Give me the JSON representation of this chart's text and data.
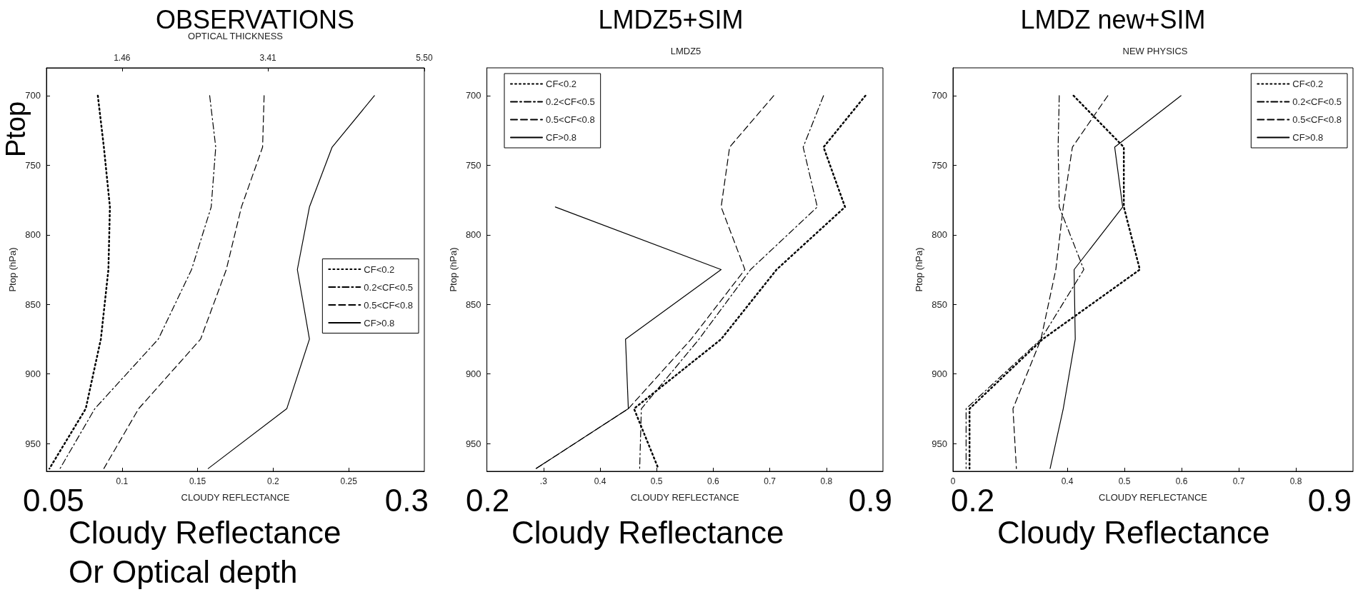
{
  "chart_data": [
    {
      "type": "line",
      "title": "OBSERVATIONS",
      "xlabel": "CLOUDY REFLECTANCE",
      "ylabel": "Ptop (hPa)",
      "x2label": "OPTICAL THICKNESS",
      "xlim": [
        0.05,
        0.3
      ],
      "xticks": [
        0.1,
        0.15,
        0.2,
        0.25
      ],
      "x2lim": [
        0.45,
        5.5
      ],
      "x2ticks": [
        1.46,
        3.41,
        {
          "value": 5.5,
          "label": "5.50"
        }
      ],
      "ylim": [
        970,
        680
      ],
      "yticks": [
        700,
        750,
        800,
        850,
        900,
        950
      ],
      "legend": "right",
      "annotations": [
        "Ptop",
        "0.05",
        "0.3",
        "Cloudy Reflectance",
        "Or Optical depth"
      ],
      "series": [
        {
          "name": "CF<0.2",
          "color": "#000000",
          "line_style": "dotted",
          "x": [
            0.084,
            0.088,
            0.092,
            0.091,
            0.086,
            0.076,
            0.052
          ],
          "values": [
            700,
            737,
            780,
            825,
            875,
            925,
            968
          ]
        },
        {
          "name": "0.2<CF<0.5",
          "color": "#000000",
          "line_style": "dashdot",
          "x": [
            0.158,
            0.162,
            0.159,
            0.146,
            0.124,
            0.082,
            0.059
          ],
          "values": [
            700,
            737,
            780,
            825,
            875,
            925,
            968
          ]
        },
        {
          "name": "0.5<CF<0.8",
          "color": "#000000",
          "line_style": "dashed",
          "x": [
            0.194,
            0.193,
            0.179,
            0.169,
            0.152,
            0.111,
            0.088
          ],
          "values": [
            700,
            737,
            780,
            825,
            875,
            925,
            968
          ]
        },
        {
          "name": "CF>0.8",
          "color": "#000000",
          "line_style": "solid",
          "x": [
            0.267,
            0.239,
            0.224,
            0.216,
            0.224,
            0.209,
            0.157
          ],
          "values": [
            700,
            737,
            780,
            825,
            875,
            925,
            968
          ]
        }
      ]
    },
    {
      "type": "line",
      "title": "LMDZ5+SIM",
      "subtitle": "LMDZ5",
      "xlabel": "CLOUDY REFLECTANCE",
      "ylabel": "Ptop (hPa)",
      "xlim": [
        0.2,
        0.9
      ],
      "xticks": [
        {
          "value": 0.3,
          "label": ".3"
        },
        0.4,
        0.5,
        0.6,
        0.7,
        0.8
      ],
      "ylim": [
        970,
        680
      ],
      "yticks": [
        700,
        750,
        800,
        850,
        900,
        950
      ],
      "legend": "top left",
      "annotations": [
        "0.2",
        "0.9",
        "Cloudy Reflectance"
      ],
      "series": [
        {
          "name": "CF<0.2",
          "color": "#000000",
          "line_style": "dotted",
          "x": [
            0.869,
            0.795,
            0.833,
            0.712,
            0.614,
            0.46,
            0.503
          ],
          "values": [
            700,
            737,
            780,
            825,
            875,
            925,
            968
          ]
        },
        {
          "name": "0.2<CF<0.5",
          "color": "#000000",
          "line_style": "dashdot",
          "x": [
            0.795,
            0.759,
            0.784,
            0.666,
            0.575,
            0.473,
            0.47
          ],
          "values": [
            700,
            737,
            780,
            825,
            875,
            925,
            968
          ]
        },
        {
          "name": "0.5<CF<0.8",
          "color": "#000000",
          "line_style": "dashed",
          "x": [
            0.707,
            0.629,
            0.614,
            0.656,
            0.561,
            0.45,
            0.287
          ],
          "values": [
            700,
            737,
            780,
            825,
            875,
            925,
            968
          ]
        },
        {
          "name": "CF>0.8",
          "color": "#000000",
          "line_style": "solid",
          "x": [
            0.321,
            0.614,
            0.445,
            0.45,
            0.287
          ],
          "values": [
            780,
            825,
            875,
            925,
            968
          ]
        }
      ]
    },
    {
      "type": "line",
      "title": "LMDZ new+SIM",
      "subtitle": "NEW PHYSICS",
      "xlabel": "CLOUDY REFLECTANCE",
      "ylabel": "Ptop (hPa)",
      "xlim": [
        0.2,
        0.9
      ],
      "xticks": [
        {
          "value": 0.2,
          "label": "0"
        },
        0.4,
        0.5,
        0.6,
        0.7,
        0.8
      ],
      "ylim": [
        970,
        680
      ],
      "yticks": [
        700,
        750,
        800,
        850,
        900,
        950
      ],
      "legend": "top right",
      "annotations": [
        "0.2",
        "0.9",
        "Cloudy Reflectance"
      ],
      "series": [
        {
          "name": "CF<0.2",
          "color": "#000000",
          "line_style": "dotted",
          "x": [
            0.411,
            0.499,
            0.499,
            0.527,
            0.357,
            0.229,
            0.229
          ],
          "values": [
            700,
            737,
            780,
            825,
            875,
            925,
            968
          ]
        },
        {
          "name": "0.2<CF<0.5",
          "color": "#000000",
          "line_style": "dashdot",
          "x": [
            0.386,
            0.384,
            0.386,
            0.429,
            0.354,
            0.223,
            0.223
          ],
          "values": [
            700,
            737,
            780,
            825,
            875,
            925,
            968
          ]
        },
        {
          "name": "0.5<CF<0.8",
          "color": "#000000",
          "line_style": "dashed",
          "x": [
            0.471,
            0.409,
            0.393,
            0.38,
            0.354,
            0.305,
            0.311
          ],
          "values": [
            700,
            737,
            780,
            825,
            875,
            925,
            968
          ]
        },
        {
          "name": "CF>0.8",
          "color": "#000000",
          "line_style": "solid",
          "x": [
            0.599,
            0.483,
            0.497,
            0.412,
            0.414,
            0.393,
            0.37
          ],
          "values": [
            700,
            737,
            780,
            825,
            875,
            925,
            968
          ]
        }
      ]
    }
  ]
}
